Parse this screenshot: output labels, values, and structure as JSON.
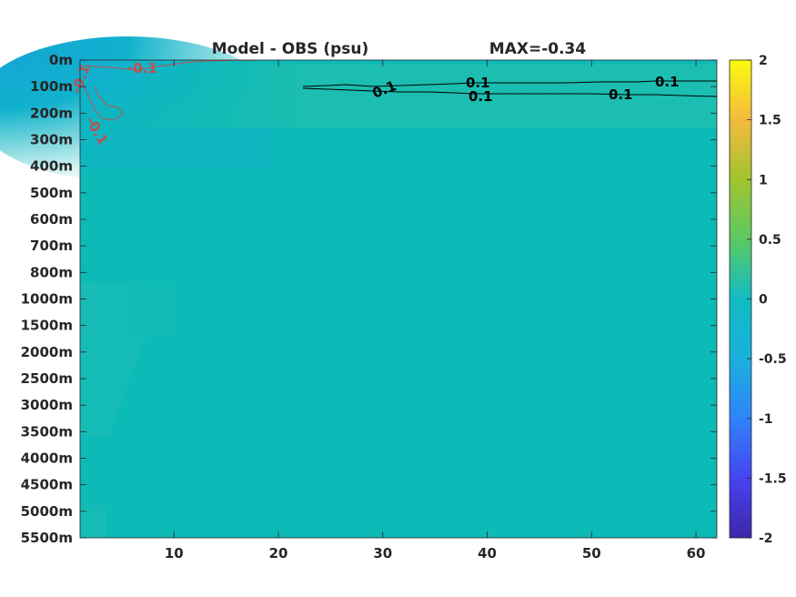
{
  "chart_data": {
    "type": "heatmap",
    "title": "Model - OBS (psu)",
    "max_label": "MAX=-0.34",
    "x_ticks": [
      10,
      20,
      30,
      40,
      50,
      60
    ],
    "xlim": [
      1,
      62
    ],
    "y_ticks": [
      "0m",
      "100m",
      "200m",
      "300m",
      "400m",
      "500m",
      "600m",
      "700m",
      "800m",
      "1000m",
      "1500m",
      "2000m",
      "2500m",
      "3000m",
      "3500m",
      "4000m",
      "4500m",
      "5000m",
      "5500m"
    ],
    "colorbar": {
      "ticks": [
        "2",
        "1.5",
        "1",
        "0.5",
        "0",
        "-0.5",
        "-1",
        "-1.5",
        "-2"
      ],
      "range": [
        -2,
        2
      ],
      "colors": [
        "#3e26a8",
        "#4743f3",
        "#2f84f9",
        "#1ab0dd",
        "#21bfae",
        "#5cc863",
        "#c4b52e",
        "#f9c83b",
        "#f9fb0e"
      ]
    },
    "background_color": "#0cbab8",
    "contours": [
      {
        "level": "0.1",
        "color": "#000000",
        "labels": [
          "0.1",
          "0.1",
          "0.1",
          "0.1",
          "0.1"
        ]
      },
      {
        "level": "-0.1",
        "color": "#c0504d",
        "labels": [
          "-0.1",
          "-0.1",
          "-0.1"
        ]
      }
    ]
  }
}
